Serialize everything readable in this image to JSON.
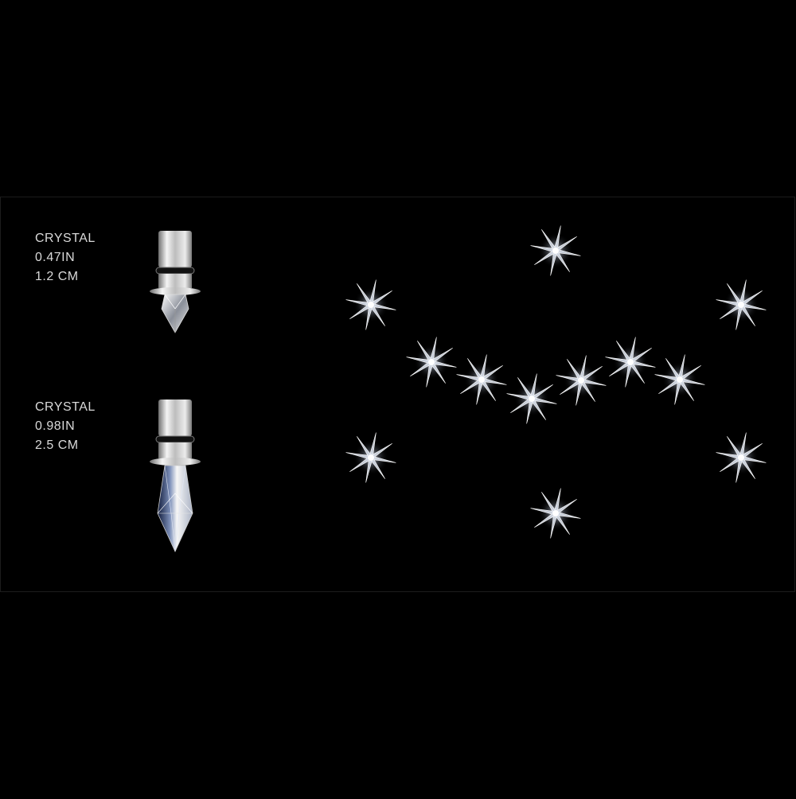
{
  "products": [
    {
      "material": "CRYSTAL",
      "size_in": "0.47IN",
      "size_cm": "1.2 CM"
    },
    {
      "material": "CRYSTAL",
      "size_in": "0.98IN",
      "size_cm": "2.5 CM"
    }
  ],
  "icons": {
    "small_fitting": "crystal-drop-small-icon",
    "large_fitting": "crystal-drop-large-icon",
    "star": "starburst-icon"
  },
  "colors": {
    "background": "#000000",
    "text": "#d9d9d9",
    "metal": "#c8c8c8",
    "star": "#ffffff"
  },
  "star_count": 12
}
